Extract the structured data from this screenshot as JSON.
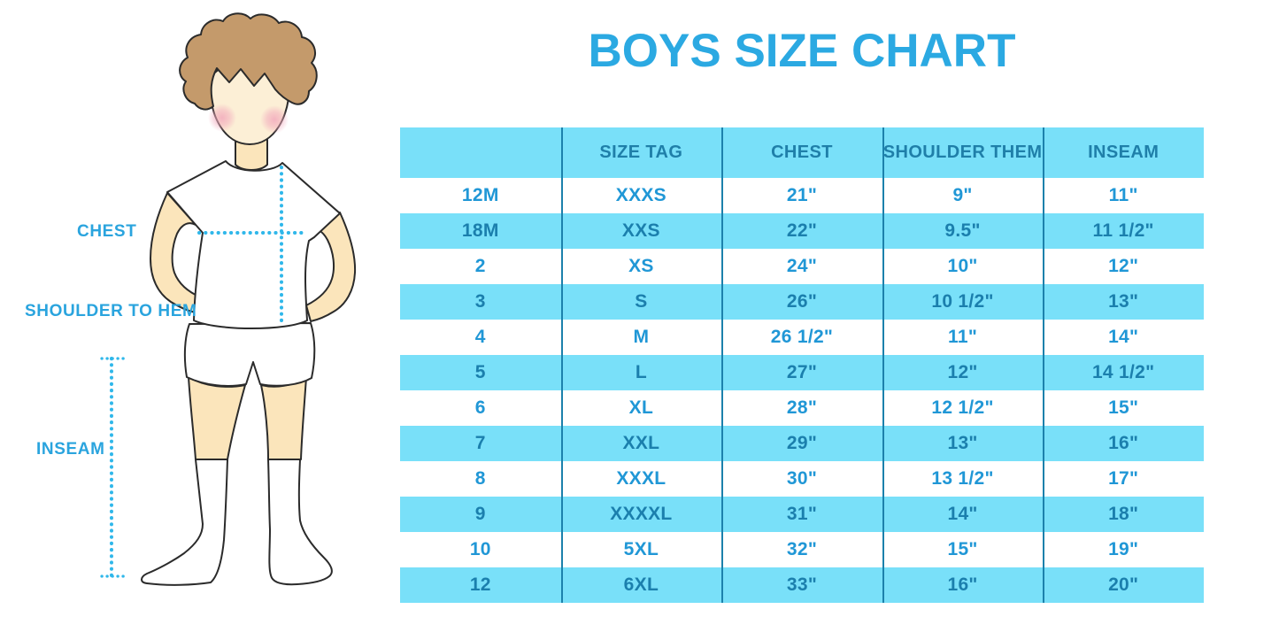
{
  "title": "BOYS SIZE CHART",
  "figure": {
    "illustration": "boy-standing-front-in-white-tshirt-shorts-and-knee-socks",
    "labels": {
      "chest": "CHEST",
      "shoulder_to_hem": "SHOULDER TO HEM",
      "inseam": "INSEAM"
    }
  },
  "colors": {
    "title_blue": "#2BA9E2",
    "label_blue": "#2AA4DE",
    "dotted_line_cyan": "#2FB7EA",
    "table_stripe": "#79E0F9",
    "table_line": "#1C81AC",
    "row_text_on_white": "#2097D6",
    "row_text_on_blue": "#1B7FAD",
    "header_text": "#1F7FA9",
    "hair_brown": "#C49A6B",
    "skin": "#FBE5BB",
    "face_skin": "#FCEFD6",
    "outline_dark": "#2B2B2B",
    "blush_pink": "#F2A9BC"
  },
  "chart_data": {
    "type": "table",
    "title": "BOYS SIZE CHART",
    "columns": [
      "",
      "SIZE TAG",
      "CHEST",
      "SHOULDER THEM",
      "INSEAM"
    ],
    "rows": [
      [
        "12M",
        "XXXS",
        "21\"",
        "9\"",
        "11\""
      ],
      [
        "18M",
        "XXS",
        "22\"",
        "9.5\"",
        "11 1/2\""
      ],
      [
        "2",
        "XS",
        "24\"",
        "10\"",
        "12\""
      ],
      [
        "3",
        "S",
        "26\"",
        "10 1/2\"",
        "13\""
      ],
      [
        "4",
        "M",
        "26 1/2\"",
        "11\"",
        "14\""
      ],
      [
        "5",
        "L",
        "27\"",
        "12\"",
        "14 1/2\""
      ],
      [
        "6",
        "XL",
        "28\"",
        "12 1/2\"",
        "15\""
      ],
      [
        "7",
        "XXL",
        "29\"",
        "13\"",
        "16\""
      ],
      [
        "8",
        "XXXL",
        "30\"",
        "13 1/2\"",
        "17\""
      ],
      [
        "9",
        "XXXXL",
        "31\"",
        "14\"",
        "18\""
      ],
      [
        "10",
        "5XL",
        "32\"",
        "15\"",
        "19\""
      ],
      [
        "12",
        "6XL",
        "33\"",
        "16\"",
        "20\""
      ]
    ],
    "striped_row_indices": [
      1,
      3,
      5,
      7,
      9,
      11
    ],
    "grid": "vertical-column-separators-only",
    "legend_position": "none"
  }
}
